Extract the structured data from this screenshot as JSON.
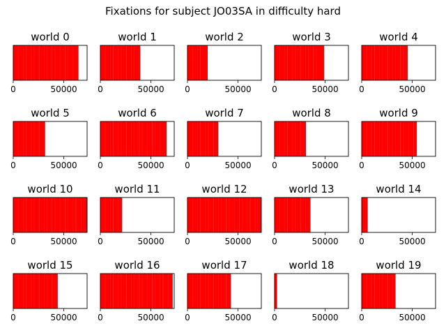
{
  "figure_title": "Fixations for subject JO03SA in difficulty hard",
  "axis_style": {
    "bar_color": "#ff0000",
    "frame_color": "#000000"
  },
  "chart_data": [
    {
      "type": "bar",
      "title": "world 0",
      "xlim": [
        0,
        73000
      ],
      "xticks": [
        0,
        50000
      ],
      "xtick_labels": [
        "0",
        "50000"
      ],
      "data_extent": [
        0,
        64500
      ],
      "gaps": [],
      "yticks": false,
      "grid": false
    },
    {
      "type": "bar",
      "title": "world 1",
      "xlim": [
        0,
        73000
      ],
      "xticks": [
        0,
        50000
      ],
      "xtick_labels": [
        "0",
        "50000"
      ],
      "data_extent": [
        0,
        39500
      ],
      "gaps": [],
      "yticks": false,
      "grid": false
    },
    {
      "type": "bar",
      "title": "world 2",
      "xlim": [
        0,
        73000
      ],
      "xticks": [
        0,
        50000
      ],
      "xtick_labels": [
        "0",
        "50000"
      ],
      "data_extent": [
        0,
        20000
      ],
      "gaps": [],
      "yticks": false,
      "grid": false
    },
    {
      "type": "bar",
      "title": "world 3",
      "xlim": [
        0,
        73000
      ],
      "xticks": [
        0,
        50000
      ],
      "xtick_labels": [
        "0",
        "50000"
      ],
      "data_extent": [
        0,
        49000
      ],
      "gaps": [],
      "yticks": false,
      "grid": false
    },
    {
      "type": "bar",
      "title": "world 4",
      "xlim": [
        0,
        73000
      ],
      "xticks": [
        0,
        50000
      ],
      "xtick_labels": [
        "0",
        "50000"
      ],
      "data_extent": [
        0,
        45500
      ],
      "gaps": [],
      "yticks": false,
      "grid": false
    },
    {
      "type": "bar",
      "title": "world 5",
      "xlim": [
        0,
        73000
      ],
      "xticks": [
        0,
        50000
      ],
      "xtick_labels": [
        "0",
        "50000"
      ],
      "data_extent": [
        0,
        31500
      ],
      "gaps": [],
      "yticks": false,
      "grid": false
    },
    {
      "type": "bar",
      "title": "world 6",
      "xlim": [
        0,
        73000
      ],
      "xticks": [
        0,
        50000
      ],
      "xtick_labels": [
        "0",
        "50000"
      ],
      "data_extent": [
        0,
        65500
      ],
      "gaps": [],
      "yticks": false,
      "grid": false
    },
    {
      "type": "bar",
      "title": "world 7",
      "xlim": [
        0,
        73000
      ],
      "xticks": [
        0,
        50000
      ],
      "xtick_labels": [
        "0",
        "50000"
      ],
      "data_extent": [
        0,
        30500
      ],
      "gaps": [],
      "yticks": false,
      "grid": false
    },
    {
      "type": "bar",
      "title": "world 8",
      "xlim": [
        0,
        73000
      ],
      "xticks": [
        0,
        50000
      ],
      "xtick_labels": [
        "0",
        "50000"
      ],
      "data_extent": [
        0,
        31000
      ],
      "gaps": [],
      "yticks": false,
      "grid": false
    },
    {
      "type": "bar",
      "title": "world 9",
      "xlim": [
        0,
        73000
      ],
      "xticks": [
        0,
        50000
      ],
      "xtick_labels": [
        "0",
        "50000"
      ],
      "data_extent": [
        0,
        54500
      ],
      "gaps": [],
      "yticks": false,
      "grid": false
    },
    {
      "type": "bar",
      "title": "world 10",
      "xlim": [
        0,
        73000
      ],
      "xticks": [
        0,
        50000
      ],
      "xtick_labels": [
        "0",
        "50000"
      ],
      "data_extent": [
        0,
        73000
      ],
      "gaps": [],
      "yticks": false,
      "grid": false
    },
    {
      "type": "bar",
      "title": "world 11",
      "xlim": [
        0,
        73000
      ],
      "xticks": [
        0,
        50000
      ],
      "xtick_labels": [
        "0",
        "50000"
      ],
      "data_extent": [
        0,
        21500
      ],
      "gaps": [],
      "yticks": false,
      "grid": false
    },
    {
      "type": "bar",
      "title": "world 12",
      "xlim": [
        0,
        73000
      ],
      "xticks": [
        0,
        50000
      ],
      "xtick_labels": [
        "0",
        "50000"
      ],
      "data_extent": [
        0,
        73000
      ],
      "gaps": [],
      "yticks": false,
      "grid": false
    },
    {
      "type": "bar",
      "title": "world 13",
      "xlim": [
        0,
        73000
      ],
      "xticks": [
        0,
        50000
      ],
      "xtick_labels": [
        "0",
        "50000"
      ],
      "data_extent": [
        0,
        35500
      ],
      "gaps": [],
      "yticks": false,
      "grid": false
    },
    {
      "type": "bar",
      "title": "world 14",
      "xlim": [
        0,
        73000
      ],
      "xticks": [
        0,
        50000
      ],
      "xtick_labels": [
        "0",
        "50000"
      ],
      "data_extent": [
        0,
        6000
      ],
      "gaps": [],
      "yticks": false,
      "grid": false
    },
    {
      "type": "bar",
      "title": "world 15",
      "xlim": [
        0,
        73000
      ],
      "xticks": [
        0,
        50000
      ],
      "xtick_labels": [
        "0",
        "50000"
      ],
      "data_extent": [
        0,
        44000
      ],
      "gaps": [],
      "yticks": false,
      "grid": false
    },
    {
      "type": "bar",
      "title": "world 16",
      "xlim": [
        0,
        73000
      ],
      "xticks": [
        0,
        50000
      ],
      "xtick_labels": [
        "0",
        "50000"
      ],
      "data_extent": [
        0,
        71500
      ],
      "gaps": [],
      "yticks": false,
      "grid": false
    },
    {
      "type": "bar",
      "title": "world 17",
      "xlim": [
        0,
        73000
      ],
      "xticks": [
        0,
        50000
      ],
      "xtick_labels": [
        "0",
        "50000"
      ],
      "data_extent": [
        0,
        43000
      ],
      "gaps": [],
      "yticks": false,
      "grid": false
    },
    {
      "type": "bar",
      "title": "world 18",
      "xlim": [
        0,
        73000
      ],
      "xticks": [
        0,
        50000
      ],
      "xtick_labels": [
        "0",
        "50000"
      ],
      "data_extent": [
        0,
        2500
      ],
      "gaps": [],
      "yticks": false,
      "grid": false
    },
    {
      "type": "bar",
      "title": "world 19",
      "xlim": [
        0,
        73000
      ],
      "xticks": [
        0,
        50000
      ],
      "xtick_labels": [
        "0",
        "50000"
      ],
      "data_extent": [
        0,
        33500
      ],
      "gaps": [],
      "yticks": false,
      "grid": false
    }
  ]
}
